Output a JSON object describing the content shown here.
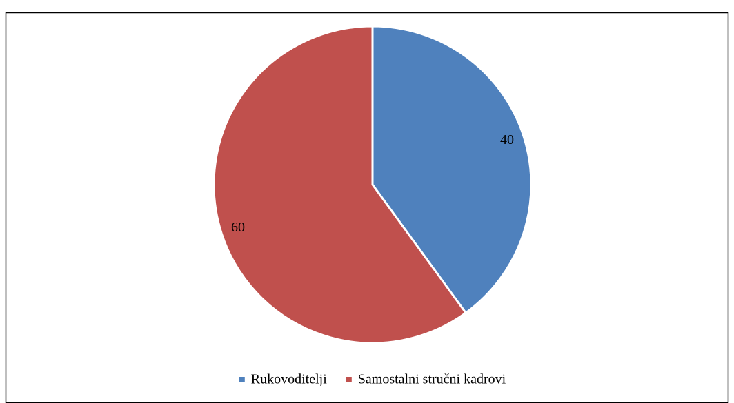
{
  "chart_data": {
    "type": "pie",
    "categories": [
      "Rukovoditelji",
      "Samostalni stručni kadrovi"
    ],
    "values": [
      40,
      60
    ],
    "colors": [
      "#4f81bd",
      "#c0504d"
    ],
    "legend": "bottom"
  }
}
